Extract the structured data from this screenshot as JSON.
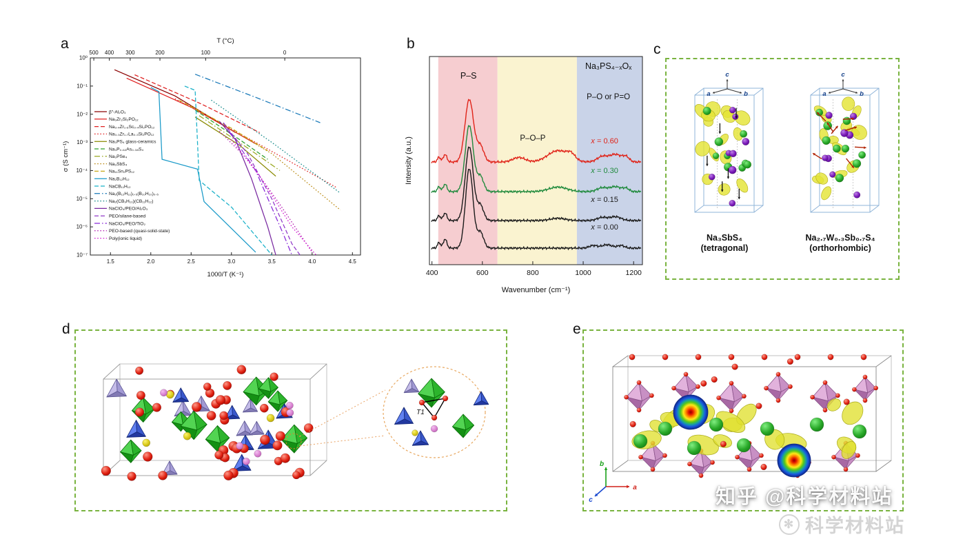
{
  "figure": {
    "panel_labels": {
      "a": "a",
      "b": "b",
      "c": "c",
      "d": "d",
      "e": "e"
    }
  },
  "panel_c": {
    "axis": {
      "a": "a",
      "b": "b",
      "c": "c"
    },
    "left": {
      "formula": "Na₃SbS₄",
      "phase": "(tetragonal)"
    },
    "right": {
      "formula": "Na₂.₇W₀.₃Sb₀.₇S₄",
      "phase": "(orthorhombic)"
    }
  },
  "panel_d": {
    "inset_label": "T1"
  },
  "panel_e": {
    "axis": {
      "a": "a",
      "b": "b",
      "c": "c"
    }
  },
  "watermark": {
    "line1": "知乎 @科学材料站",
    "line2": "科学材料站",
    "logo": "✻"
  },
  "chart_data": [
    {
      "panel": "a",
      "type": "line",
      "xlabel": "1000/T (K⁻¹)",
      "ylabel": "σ (S cm⁻¹)",
      "top_axis_label": "T (°C)",
      "xlim": [
        1.25,
        4.6
      ],
      "ylog_lim": [
        -7,
        0
      ],
      "xticks": [
        "1.5",
        "2.0",
        "2.5",
        "3.0",
        "3.5",
        "4.0",
        "4.5"
      ],
      "yticks": [
        "10⁰",
        "10⁻¹",
        "10⁻²",
        "10⁻³",
        "10⁻⁴",
        "10⁻⁵",
        "10⁻⁶",
        "10⁻⁷"
      ],
      "top_ticks": [
        {
          "label": "500",
          "T": 500
        },
        {
          "label": "400",
          "T": 400
        },
        {
          "label": "300",
          "T": 300
        },
        {
          "label": "200",
          "T": 200
        },
        {
          "label": "100",
          "T": 100
        },
        {
          "label": "0",
          "T": 0
        }
      ],
      "legend_position": "left-inside",
      "grid": false,
      "series": [
        {
          "name": "β″-Al₂O₃",
          "color": "#8b0000",
          "dash": "solid",
          "points": [
            [
              1.55,
              -0.42
            ],
            [
              2.3,
              -1.35
            ],
            [
              3.05,
              -2.65
            ]
          ]
        },
        {
          "name": "Na₃Zr₂Si₂PO₁₂",
          "color": "#e02020",
          "dash": "solid",
          "points": [
            [
              1.7,
              -0.72
            ],
            [
              2.5,
              -1.75
            ],
            [
              3.3,
              -3.05
            ]
          ]
        },
        {
          "name": "Na₃.₄Zr₁.₆Sc₀.₄Si₂PO₁₂",
          "color": "#e02020",
          "dash": "dash",
          "points": [
            [
              1.8,
              -0.6
            ],
            [
              2.6,
              -1.6
            ],
            [
              3.35,
              -2.65
            ]
          ]
        },
        {
          "name": "Na₃.₃Zr₁.₇La₀.₃Si₂PO₁₂",
          "color": "#e02020",
          "dash": "dot",
          "points": [
            [
              2.3,
              -1.45
            ],
            [
              3.3,
              -3.0
            ],
            [
              4.3,
              -4.6
            ]
          ]
        },
        {
          "name": "Na₃PS₄ glass-ceramics",
          "color": "#8a8a00",
          "dash": "solid",
          "points": [
            [
              2.55,
              -2.1
            ],
            [
              3.1,
              -3.1
            ],
            [
              3.55,
              -4.2
            ]
          ]
        },
        {
          "name": "Na₃P₀.₆₂As₀.₃₈S₄",
          "color": "#2ca02c",
          "dash": "dash",
          "points": [
            [
              2.55,
              -1.85
            ],
            [
              3.1,
              -2.9
            ],
            [
              3.45,
              -3.6
            ]
          ]
        },
        {
          "name": "Na₃PSe₄",
          "color": "#9aa820",
          "dash": "dashdot",
          "points": [
            [
              2.6,
              -2.05
            ],
            [
              3.2,
              -3.2
            ],
            [
              3.6,
              -4.0
            ]
          ]
        },
        {
          "name": "Na₃SbS₄",
          "color": "#b8860b",
          "dash": "dot",
          "points": [
            [
              2.5,
              -1.7
            ],
            [
              3.5,
              -3.4
            ],
            [
              4.35,
              -5.4
            ]
          ]
        },
        {
          "name": "Na₁₁Sn₂PS₁₂",
          "color": "#c8a818",
          "dash": "dash",
          "points": [
            [
              2.35,
              -1.5
            ],
            [
              3.0,
              -2.5
            ],
            [
              3.45,
              -3.3
            ]
          ]
        },
        {
          "name": "Na₂B₁₂H₁₂",
          "color": "#1899c8",
          "dash": "solid",
          "points": [
            [
              2.0,
              -1.05
            ],
            [
              2.1,
              -1.2
            ],
            [
              2.14,
              -3.6
            ],
            [
              2.58,
              -3.95
            ],
            [
              2.66,
              -5.1
            ],
            [
              3.3,
              -6.9
            ]
          ]
        },
        {
          "name": "NaCB₁₁H₁₂",
          "color": "#18b0c8",
          "dash": "dash",
          "points": [
            [
              2.42,
              -1.0
            ],
            [
              2.55,
              -1.15
            ],
            [
              2.6,
              -4.35
            ],
            [
              3.0,
              -5.3
            ],
            [
              3.5,
              -7.0
            ]
          ]
        },
        {
          "name": "Na₂(B₁₂H₁₂)₀.₅(B₁₀H₁₀)₀.₅",
          "color": "#1878b8",
          "dash": "dashdot",
          "points": [
            [
              2.55,
              -0.58
            ],
            [
              3.3,
              -1.4
            ],
            [
              4.1,
              -2.3
            ]
          ]
        },
        {
          "name": "Na₂(CB₉H₁₀)(CB₁₁H₁₂)",
          "color": "#108888",
          "dash": "dot",
          "points": [
            [
              2.75,
              -1.5
            ],
            [
              3.5,
              -3.0
            ],
            [
              4.35,
              -4.8
            ]
          ]
        },
        {
          "name": "NaClO₄/PEO/Al₂O₃",
          "color": "#7828a0",
          "dash": "solid",
          "points": [
            [
              2.85,
              -2.25
            ],
            [
              3.05,
              -2.9
            ],
            [
              3.25,
              -4.3
            ],
            [
              3.45,
              -6.0
            ],
            [
              3.55,
              -7.0
            ]
          ]
        },
        {
          "name": "PEO/silane-based",
          "color": "#9038c8",
          "dash": "dash",
          "points": [
            [
              2.95,
              -2.5
            ],
            [
              3.2,
              -3.4
            ],
            [
              3.5,
              -5.0
            ],
            [
              3.75,
              -6.6
            ],
            [
              3.85,
              -7.0
            ]
          ]
        },
        {
          "name": "NaClO₄/PEO/TiO₂",
          "color": "#8828d8",
          "dash": "dashdot",
          "points": [
            [
              2.9,
              -2.3
            ],
            [
              3.3,
              -4.0
            ],
            [
              3.65,
              -6.3
            ],
            [
              3.75,
              -7.0
            ]
          ]
        },
        {
          "name": "PEO-based (quasi-solid-state)",
          "color": "#b018b0",
          "dash": "dot",
          "points": [
            [
              2.85,
              -2.6
            ],
            [
              3.2,
              -3.6
            ],
            [
              3.6,
              -5.2
            ],
            [
              4.0,
              -6.9
            ]
          ]
        },
        {
          "name": "Poly(ionic liquid)",
          "color": "#d018d0",
          "dash": "dot",
          "points": [
            [
              3.0,
              -2.9
            ],
            [
              3.35,
              -4.2
            ],
            [
              3.75,
              -6.0
            ],
            [
              4.05,
              -7.0
            ]
          ]
        }
      ]
    },
    {
      "panel": "b",
      "type": "line",
      "title": "Na₃PS₄₋ₓOₓ",
      "xlabel": "Wavenumber (cm⁻¹)",
      "ylabel": "Intensity (a.u.)",
      "xlim": [
        390,
        1235
      ],
      "xticks": [
        400,
        600,
        800,
        1000,
        1200
      ],
      "labels": {
        "ps": "P–S",
        "pop": "P–O–P",
        "po": "P–O or P=O"
      },
      "regions": [
        {
          "label": "P–S",
          "range": [
            425,
            660
          ],
          "color": "#f6cdd0"
        },
        {
          "label": "P–O–P",
          "range": [
            660,
            975
          ],
          "color": "#faf3d0"
        },
        {
          "label": "P–O or P=O",
          "range": [
            975,
            1235
          ],
          "color": "#c9d3e8"
        }
      ],
      "series": [
        {
          "label": "x = 0.60",
          "color": "#e02318",
          "baseline": 193,
          "peaks": [
            [
              548,
              1.65,
              17
            ],
            [
              592,
              0.42,
              14
            ],
            [
              452,
              0.2,
              7
            ],
            [
              428,
              0.13,
              6
            ],
            [
              745,
              0.12,
              24
            ],
            [
              900,
              0.3,
              40
            ],
            [
              952,
              0.14,
              16
            ],
            [
              1075,
              0.14,
              20
            ],
            [
              1128,
              0.2,
              24
            ],
            [
              1170,
              0.12,
              13
            ]
          ]
        },
        {
          "label": "x = 0.30",
          "color": "#1f8a3c",
          "baseline": 236,
          "peaks": [
            [
              548,
              1.75,
              16
            ],
            [
              592,
              0.4,
              13
            ],
            [
              452,
              0.2,
              7
            ],
            [
              428,
              0.13,
              6
            ],
            [
              900,
              0.12,
              36
            ],
            [
              1075,
              0.1,
              20
            ],
            [
              1128,
              0.13,
              22
            ],
            [
              1170,
              0.08,
              12
            ]
          ]
        },
        {
          "label": "x = 0.15",
          "color": "#1a1a1a",
          "baseline": 278,
          "peaks": [
            [
              548,
              1.95,
              16
            ],
            [
              592,
              0.4,
              13
            ],
            [
              452,
              0.2,
              7
            ],
            [
              428,
              0.13,
              6
            ],
            [
              900,
              0.06,
              30
            ],
            [
              1075,
              0.08,
              20
            ],
            [
              1128,
              0.1,
              22
            ]
          ]
        },
        {
          "label": "x = 0.00",
          "color": "#1a1a1a",
          "baseline": 318,
          "peaks": [
            [
              548,
              2.1,
              15
            ],
            [
              592,
              0.42,
              13
            ],
            [
              452,
              0.24,
              7
            ],
            [
              428,
              0.15,
              6
            ],
            [
              1040,
              0.07,
              16
            ],
            [
              1095,
              0.09,
              20
            ],
            [
              1150,
              0.07,
              14
            ]
          ]
        }
      ]
    }
  ]
}
